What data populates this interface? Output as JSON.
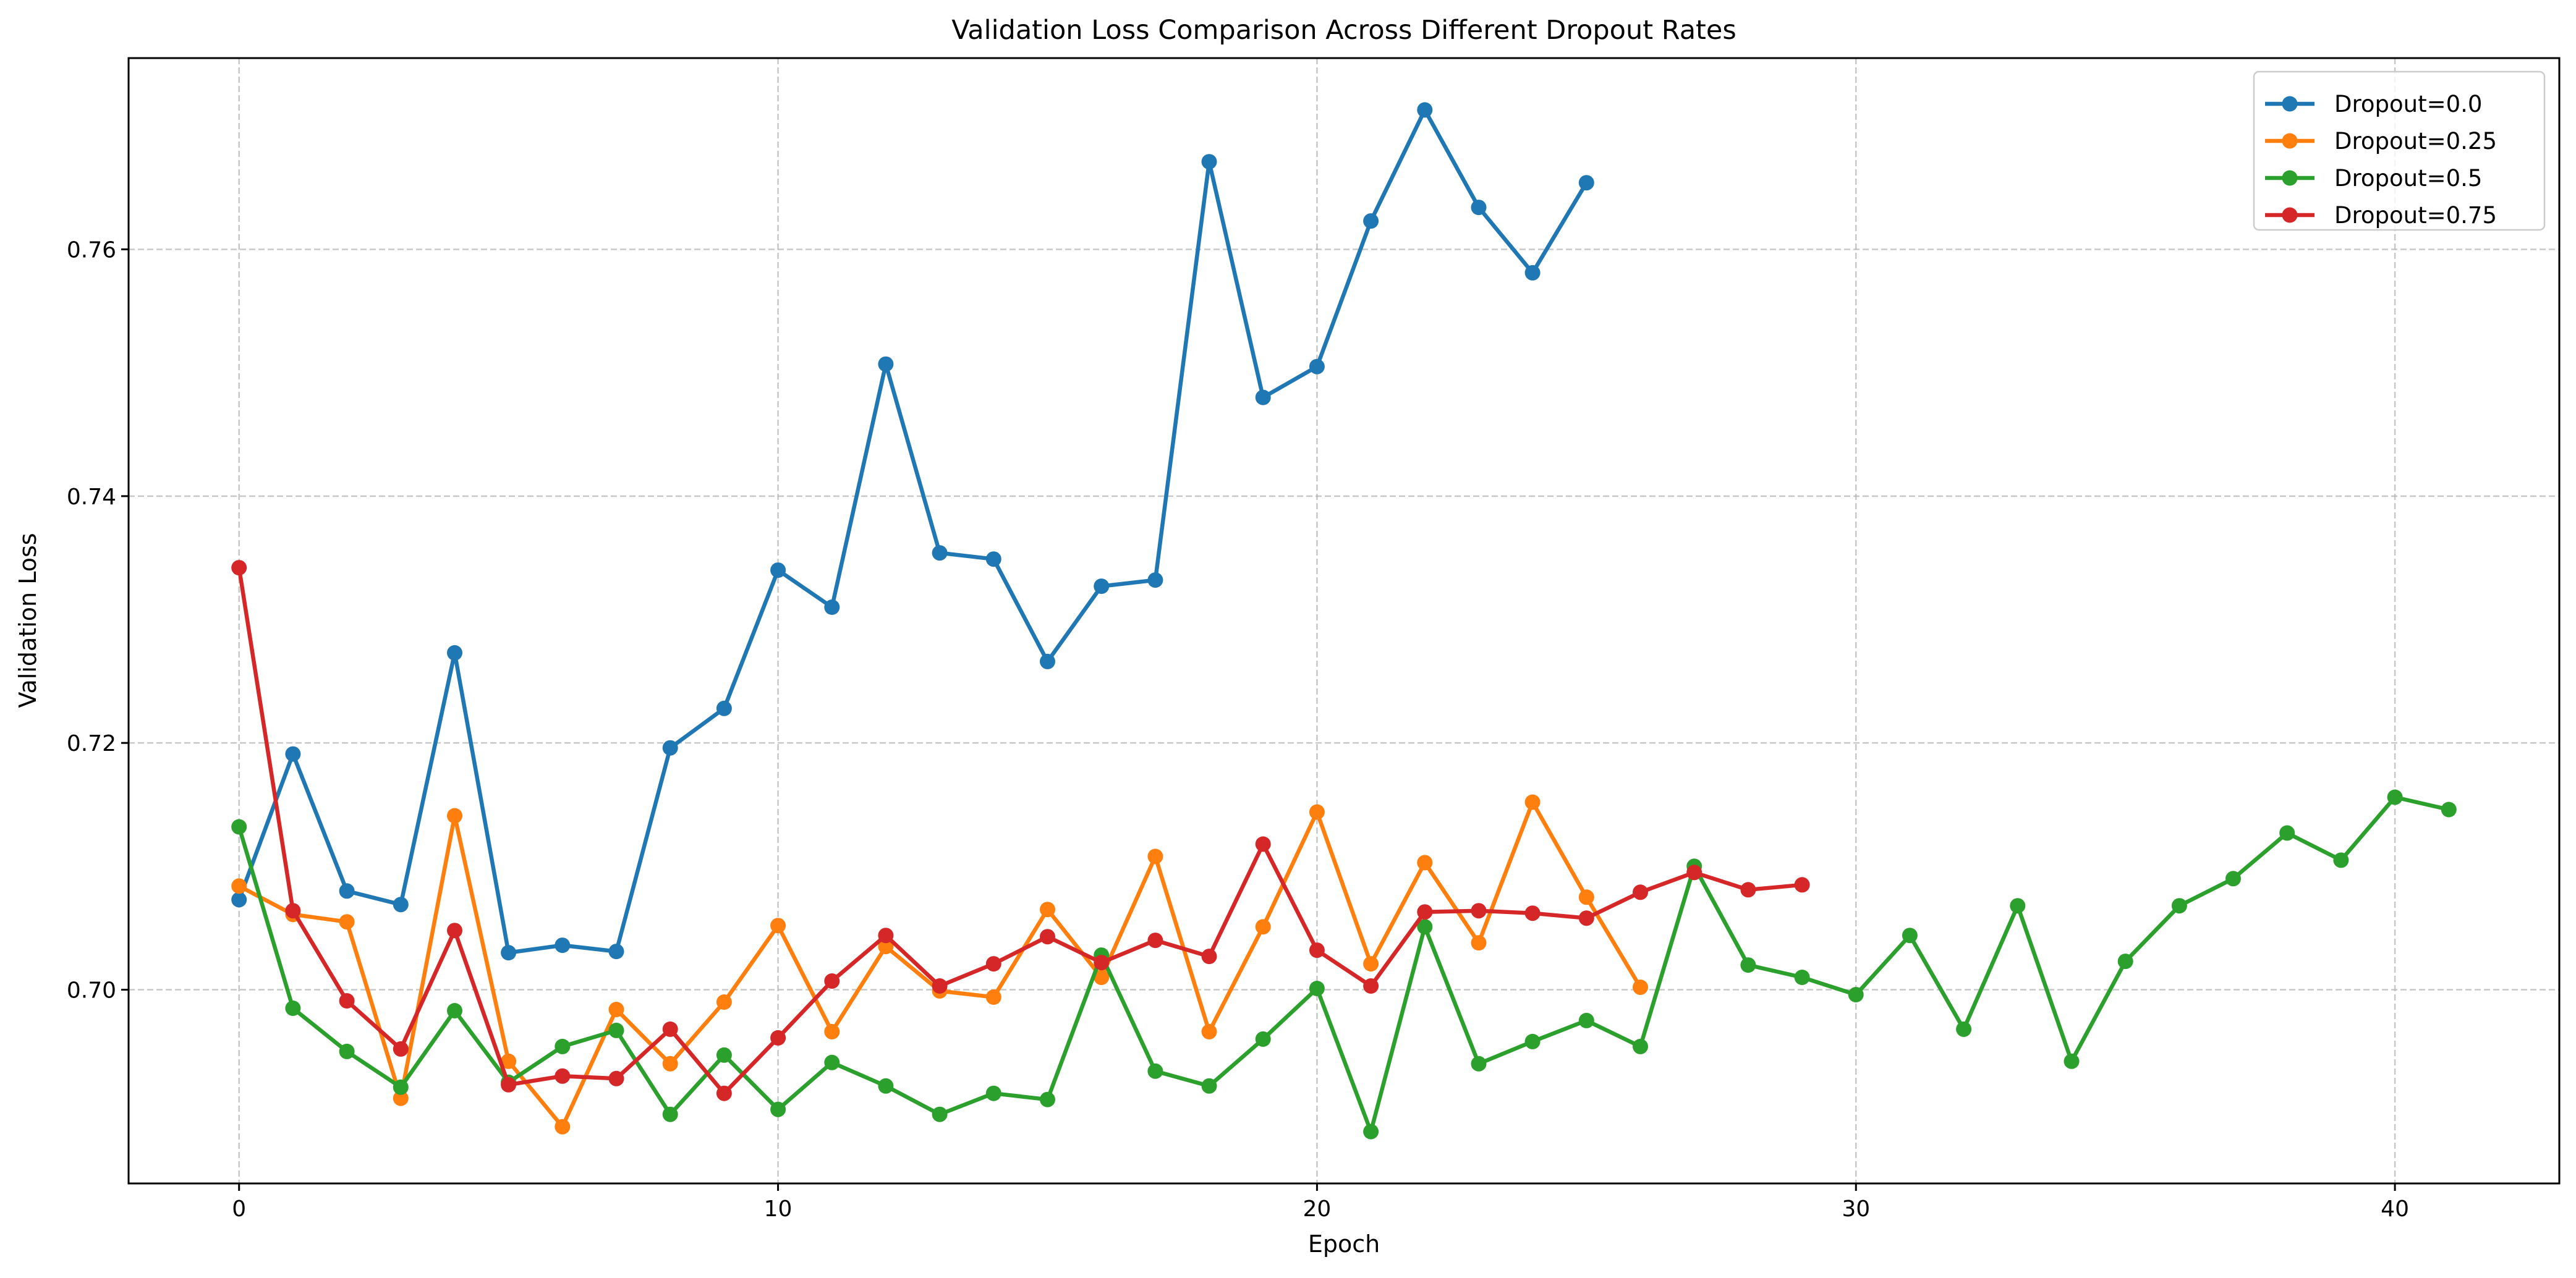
{
  "chart_data": {
    "type": "line",
    "title": "Validation Loss Comparison Across Different Dropout Rates",
    "xlabel": "Epoch",
    "ylabel": "Validation Loss",
    "xlim": [
      -2.05,
      43.05
    ],
    "ylim": [
      0.6843,
      0.7755
    ],
    "xticks": [
      0,
      10,
      20,
      30,
      40
    ],
    "xtick_labels": [
      "0",
      "10",
      "20",
      "30",
      "40"
    ],
    "yticks": [
      0.7,
      0.72,
      0.74,
      0.76
    ],
    "ytick_labels": [
      "0.70",
      "0.72",
      "0.74",
      "0.76"
    ],
    "grid": true,
    "legend_position": "top-right",
    "series": [
      {
        "name": "Dropout=0.0",
        "color": "#1f77b4",
        "x": [
          0,
          1,
          2,
          3,
          4,
          5,
          6,
          7,
          8,
          9,
          10,
          11,
          12,
          13,
          14,
          15,
          16,
          17,
          18,
          19,
          20,
          21,
          22,
          23,
          24,
          25
        ],
        "values": [
          0.7073,
          0.7191,
          0.708,
          0.7069,
          0.7273,
          0.703,
          0.7036,
          0.7031,
          0.7196,
          0.7228,
          0.734,
          0.731,
          0.7507,
          0.7354,
          0.7349,
          0.7266,
          0.7327,
          0.7332,
          0.7671,
          0.748,
          0.7505,
          0.7623,
          0.7713,
          0.7634,
          0.7581,
          0.7654
        ]
      },
      {
        "name": "Dropout=0.25",
        "color": "#ff7f0e",
        "x": [
          0,
          1,
          2,
          3,
          4,
          5,
          6,
          7,
          8,
          9,
          10,
          11,
          12,
          13,
          14,
          15,
          16,
          17,
          18,
          19,
          20,
          21,
          22,
          23,
          24,
          25,
          26
        ],
        "values": [
          0.7084,
          0.7061,
          0.7055,
          0.6912,
          0.7141,
          0.6942,
          0.6889,
          0.6984,
          0.694,
          0.699,
          0.7052,
          0.6966,
          0.7035,
          0.6999,
          0.6994,
          0.7065,
          0.701,
          0.7108,
          0.6966,
          0.7051,
          0.7144,
          0.7021,
          0.7103,
          0.7038,
          0.7152,
          0.7075,
          0.7002
        ]
      },
      {
        "name": "Dropout=0.5",
        "color": "#2ca02c",
        "x": [
          0,
          1,
          2,
          3,
          4,
          5,
          6,
          7,
          8,
          9,
          10,
          11,
          12,
          13,
          14,
          15,
          16,
          17,
          18,
          19,
          20,
          21,
          22,
          23,
          24,
          25,
          26,
          27,
          28,
          29,
          30,
          31,
          32,
          33,
          34,
          35,
          36,
          37,
          38,
          39,
          40,
          41
        ],
        "values": [
          0.7132,
          0.6985,
          0.695,
          0.6921,
          0.6983,
          0.6925,
          0.6954,
          0.6967,
          0.6899,
          0.6947,
          0.6903,
          0.6941,
          0.6922,
          0.6899,
          0.6916,
          0.6911,
          0.7028,
          0.6934,
          0.6922,
          0.696,
          0.7001,
          0.6885,
          0.7051,
          0.694,
          0.6958,
          0.6975,
          0.6954,
          0.71,
          0.702,
          0.701,
          0.6996,
          0.7044,
          0.6968,
          0.7068,
          0.6942,
          0.7023,
          0.7068,
          0.709,
          0.7127,
          0.7105,
          0.7156,
          0.7146
        ]
      },
      {
        "name": "Dropout=0.75",
        "color": "#d62728",
        "x": [
          0,
          1,
          2,
          3,
          4,
          5,
          6,
          7,
          8,
          9,
          10,
          11,
          12,
          13,
          14,
          15,
          16,
          17,
          18,
          19,
          20,
          21,
          22,
          23,
          24,
          25,
          26,
          27,
          28,
          29
        ],
        "values": [
          0.7342,
          0.7064,
          0.6991,
          0.6952,
          0.7048,
          0.6923,
          0.693,
          0.6928,
          0.6968,
          0.6916,
          0.6961,
          0.7007,
          0.7044,
          0.7003,
          0.7021,
          0.7043,
          0.7022,
          0.704,
          0.7027,
          0.7118,
          0.7032,
          0.7003,
          0.7063,
          0.7064,
          0.7062,
          0.7058,
          0.7079,
          0.7095,
          0.7081,
          0.7085
        ]
      }
    ]
  }
}
